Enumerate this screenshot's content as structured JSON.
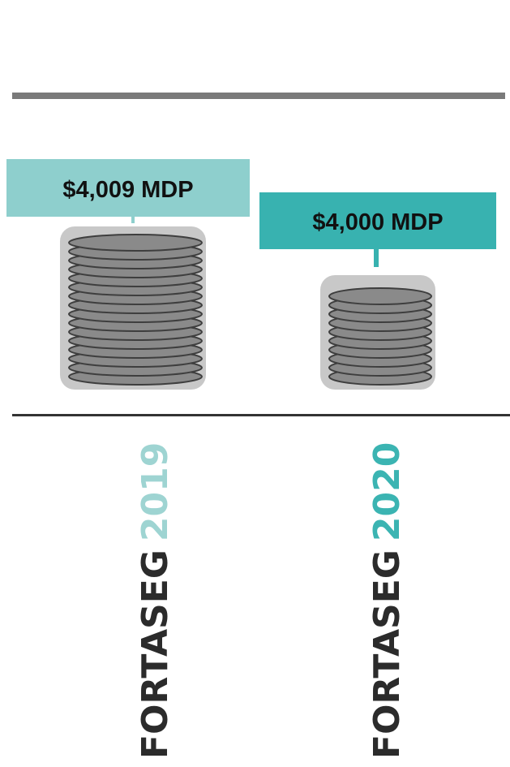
{
  "items": [
    {
      "amount": "$4,009 MDP",
      "name": "FORTASEG",
      "year": "2019"
    },
    {
      "amount": "$4,000 MDP",
      "name": "FORTASEG",
      "year": "2020"
    }
  ]
}
